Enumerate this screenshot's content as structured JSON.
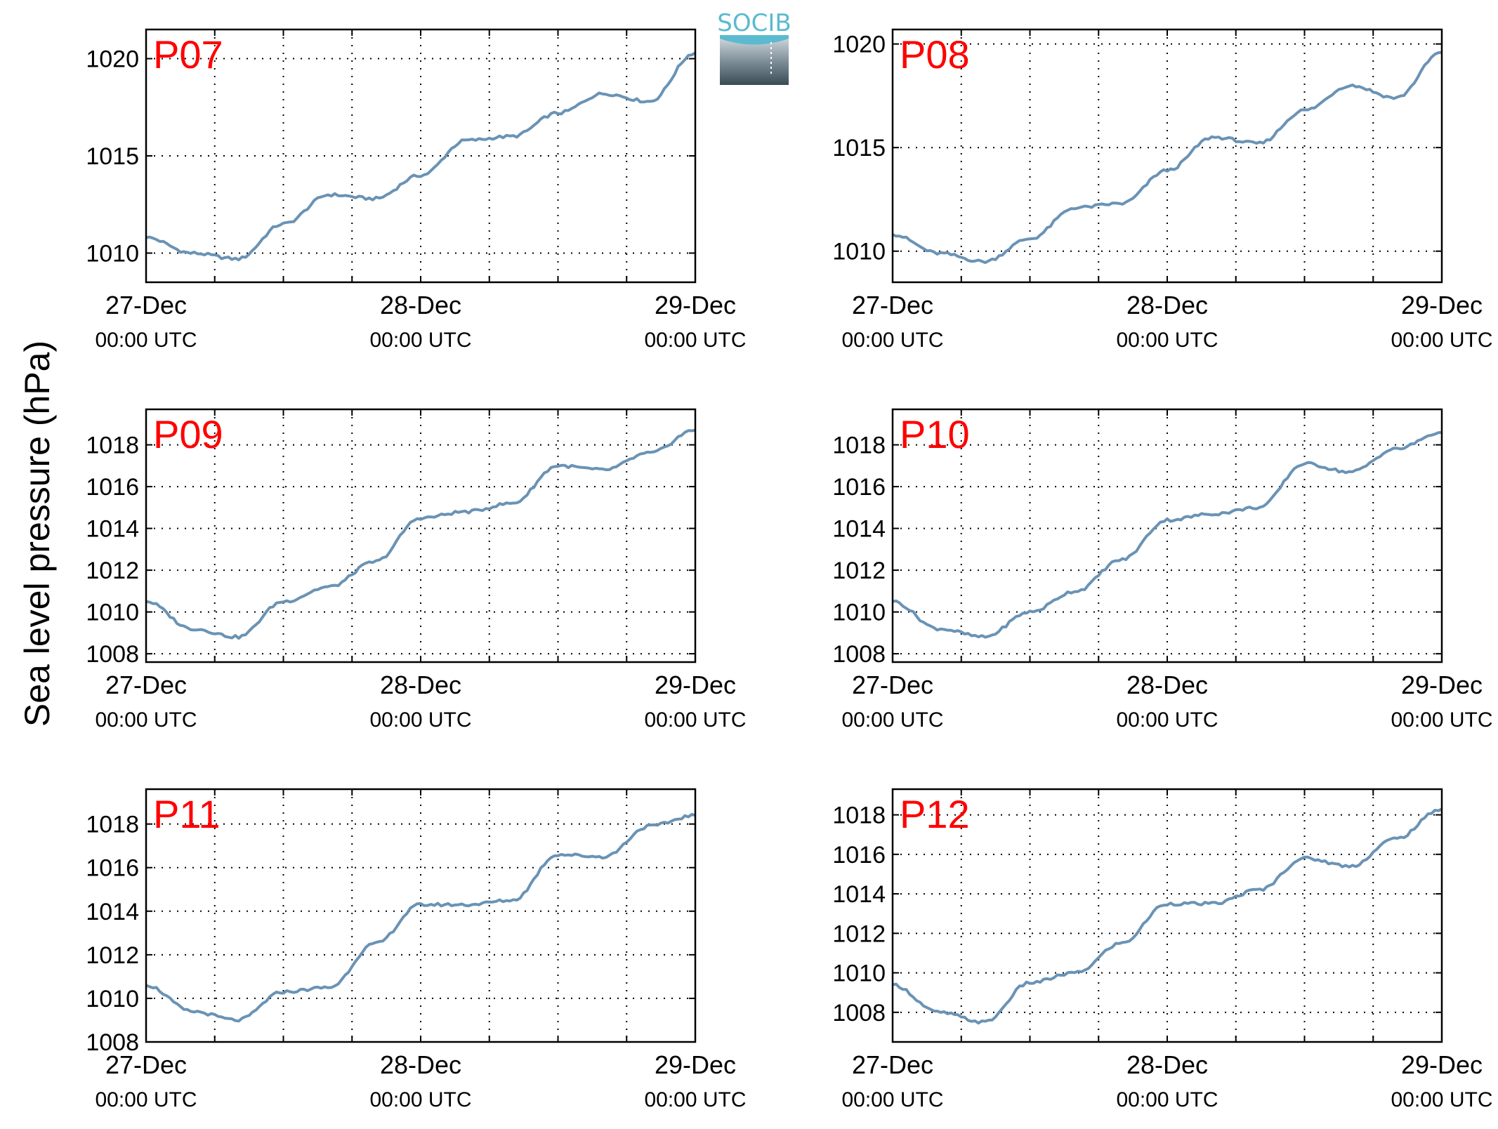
{
  "figure": {
    "ylabel": "Sea level pressure (hPa)",
    "logo_text": "SOCIB",
    "line_color": "#6a93b5",
    "label_color": "#ff0000",
    "logo_color": "#5bbad0"
  },
  "chart_data": [
    {
      "type": "line",
      "label": "P07",
      "x": [
        "27-Dec 00:00",
        "27-Dec 04:00",
        "27-Dec 08:00",
        "27-Dec 12:00",
        "27-Dec 16:00",
        "27-Dec 20:00",
        "28-Dec 00:00",
        "28-Dec 04:00",
        "28-Dec 08:00",
        "28-Dec 12:00",
        "28-Dec 16:00",
        "28-Dec 20:00",
        "29-Dec 00:00"
      ],
      "values": [
        1010.8,
        1010.0,
        1009.7,
        1011.5,
        1013.0,
        1012.8,
        1014.0,
        1015.8,
        1016.0,
        1017.2,
        1018.2,
        1017.8,
        1020.3
      ],
      "xticks": [
        "27-Dec",
        "28-Dec",
        "29-Dec"
      ],
      "xticks_sub": [
        "00:00 UTC",
        "00:00 UTC",
        "00:00 UTC"
      ],
      "yticks": [
        "1010",
        "1015",
        "1020"
      ],
      "ytick_values": [
        1010,
        1015,
        1020
      ],
      "ylim": [
        1008.5,
        1021.5
      ],
      "grid": true
    },
    {
      "type": "line",
      "label": "P08",
      "x": [
        "27-Dec 00:00",
        "27-Dec 04:00",
        "27-Dec 08:00",
        "27-Dec 12:00",
        "27-Dec 16:00",
        "27-Dec 20:00",
        "28-Dec 00:00",
        "28-Dec 04:00",
        "28-Dec 08:00",
        "28-Dec 12:00",
        "28-Dec 16:00",
        "28-Dec 20:00",
        "29-Dec 00:00"
      ],
      "values": [
        1010.8,
        1009.9,
        1009.5,
        1010.6,
        1012.1,
        1012.3,
        1013.9,
        1015.5,
        1015.2,
        1016.8,
        1018.0,
        1017.4,
        1019.6
      ],
      "xticks": [
        "27-Dec",
        "28-Dec",
        "29-Dec"
      ],
      "xticks_sub": [
        "00:00 UTC",
        "00:00 UTC",
        "00:00 UTC"
      ],
      "yticks": [
        "1010",
        "1015",
        "1020"
      ],
      "ytick_values": [
        1010,
        1015,
        1020
      ],
      "ylim": [
        1008.5,
        1020.7
      ],
      "grid": true
    },
    {
      "type": "line",
      "label": "P09",
      "x": [
        "27-Dec 00:00",
        "27-Dec 04:00",
        "27-Dec 08:00",
        "27-Dec 12:00",
        "27-Dec 16:00",
        "27-Dec 20:00",
        "28-Dec 00:00",
        "28-Dec 04:00",
        "28-Dec 08:00",
        "28-Dec 12:00",
        "28-Dec 16:00",
        "28-Dec 20:00",
        "29-Dec 00:00"
      ],
      "values": [
        1010.5,
        1009.2,
        1008.8,
        1010.5,
        1011.2,
        1012.4,
        1014.5,
        1014.8,
        1015.2,
        1017.0,
        1016.8,
        1017.6,
        1018.7
      ],
      "xticks": [
        "27-Dec",
        "28-Dec",
        "29-Dec"
      ],
      "xticks_sub": [
        "00:00 UTC",
        "00:00 UTC",
        "00:00 UTC"
      ],
      "yticks": [
        "1008",
        "1010",
        "1012",
        "1014",
        "1016",
        "1018"
      ],
      "ytick_values": [
        1008,
        1010,
        1012,
        1014,
        1016,
        1018
      ],
      "ylim": [
        1007.6,
        1019.7
      ],
      "grid": true
    },
    {
      "type": "line",
      "label": "P10",
      "x": [
        "27-Dec 00:00",
        "27-Dec 04:00",
        "27-Dec 08:00",
        "27-Dec 12:00",
        "27-Dec 16:00",
        "27-Dec 20:00",
        "28-Dec 00:00",
        "28-Dec 04:00",
        "28-Dec 08:00",
        "28-Dec 12:00",
        "28-Dec 16:00",
        "28-Dec 20:00",
        "29-Dec 00:00"
      ],
      "values": [
        1010.5,
        1009.2,
        1008.8,
        1010.0,
        1011.0,
        1012.5,
        1014.4,
        1014.7,
        1015.0,
        1017.1,
        1016.7,
        1017.8,
        1018.6
      ],
      "xticks": [
        "27-Dec",
        "28-Dec",
        "29-Dec"
      ],
      "xticks_sub": [
        "00:00 UTC",
        "00:00 UTC",
        "00:00 UTC"
      ],
      "yticks": [
        "1008",
        "1010",
        "1012",
        "1014",
        "1016",
        "1018"
      ],
      "ytick_values": [
        1008,
        1010,
        1012,
        1014,
        1016,
        1018
      ],
      "ylim": [
        1007.6,
        1019.7
      ],
      "grid": true
    },
    {
      "type": "line",
      "label": "P11",
      "x": [
        "27-Dec 00:00",
        "27-Dec 04:00",
        "27-Dec 08:00",
        "27-Dec 12:00",
        "27-Dec 16:00",
        "27-Dec 20:00",
        "28-Dec 00:00",
        "28-Dec 04:00",
        "28-Dec 08:00",
        "28-Dec 12:00",
        "28-Dec 16:00",
        "28-Dec 20:00",
        "29-Dec 00:00"
      ],
      "values": [
        1010.6,
        1009.4,
        1009.0,
        1010.3,
        1010.5,
        1012.5,
        1014.3,
        1014.3,
        1014.5,
        1016.6,
        1016.5,
        1017.9,
        1018.4
      ],
      "xticks": [
        "27-Dec",
        "28-Dec",
        "29-Dec"
      ],
      "xticks_sub": [
        "00:00 UTC",
        "00:00 UTC",
        "00:00 UTC"
      ],
      "yticks": [
        "1008",
        "1010",
        "1012",
        "1014",
        "1016",
        "1018"
      ],
      "ytick_values": [
        1008,
        1010,
        1012,
        1014,
        1016,
        1018
      ],
      "ylim": [
        1008.0,
        1019.6
      ],
      "grid": true
    },
    {
      "type": "line",
      "label": "P12",
      "x": [
        "27-Dec 00:00",
        "27-Dec 04:00",
        "27-Dec 08:00",
        "27-Dec 12:00",
        "27-Dec 16:00",
        "27-Dec 20:00",
        "28-Dec 00:00",
        "28-Dec 04:00",
        "28-Dec 08:00",
        "28-Dec 12:00",
        "28-Dec 16:00",
        "28-Dec 20:00",
        "29-Dec 00:00"
      ],
      "values": [
        1009.4,
        1008.0,
        1007.5,
        1009.5,
        1010.0,
        1011.5,
        1013.5,
        1013.5,
        1014.2,
        1015.8,
        1015.4,
        1016.8,
        1018.3
      ],
      "xticks": [
        "27-Dec",
        "28-Dec",
        "29-Dec"
      ],
      "xticks_sub": [
        "00:00 UTC",
        "00:00 UTC",
        "00:00 UTC"
      ],
      "yticks": [
        "1008",
        "1010",
        "1012",
        "1014",
        "1016",
        "1018"
      ],
      "ytick_values": [
        1008,
        1010,
        1012,
        1014,
        1016,
        1018
      ],
      "ylim": [
        1006.5,
        1019.3
      ],
      "grid": true
    }
  ]
}
